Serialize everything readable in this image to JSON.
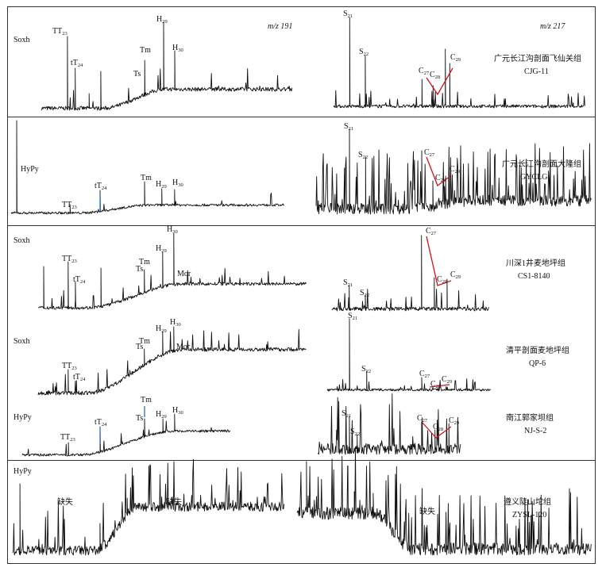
{
  "figure": {
    "left_ion": "m/z 191",
    "right_ion": "m/z 217",
    "missing_label": "缺失",
    "panels": [
      {
        "id": "cjg",
        "fraction_label": "Soxh",
        "sample_title": "广元长江沟剖面飞仙关组",
        "sample_id": "CJG-11",
        "left_peaks": [
          "TT23",
          "tT24",
          "Ts",
          "Tm",
          "H29",
          "H30"
        ],
        "right_peaks": [
          "S21",
          "S22",
          "C27",
          "C28",
          "C29"
        ]
      },
      {
        "id": "gyclg",
        "fraction_label": "HyPy",
        "sample_title": "广元长江沟剖面大隆组",
        "sample_id": "GYCLG",
        "left_peaks": [
          "TT23",
          "tT24",
          "Tm",
          "H29",
          "H30"
        ],
        "right_peaks": [
          "S21",
          "S22",
          "C27",
          "C28",
          "C29"
        ]
      },
      {
        "id": "cs1",
        "fraction_label": "Soxh",
        "sample_title": "川深1井麦地坪组",
        "sample_id": "CS1-8140",
        "left_peaks": [
          "TT23",
          "tT24",
          "Ts",
          "Tm",
          "H29",
          "H30",
          "Mor"
        ],
        "right_peaks": [
          "S21",
          "S22",
          "C27",
          "C28",
          "C29"
        ]
      },
      {
        "id": "qp6",
        "fraction_label": "Soxh",
        "sample_title": "清平剖面麦地坪组",
        "sample_id": "QP-6",
        "left_peaks": [
          "TT23",
          "tT24",
          "Ts",
          "Tm",
          "H29",
          "H30",
          "Mor"
        ],
        "right_peaks": [
          "S21",
          "S22",
          "C27",
          "C28",
          "C29"
        ]
      },
      {
        "id": "nj",
        "fraction_label": "HyPy",
        "sample_title": "南江郭家坝组",
        "sample_id": "NJ-S-2",
        "left_peaks": [
          "TT23",
          "tT24",
          "Ts",
          "Tm",
          "H29",
          "H30"
        ],
        "right_peaks": [
          "S21",
          "S22",
          "C27",
          "C28",
          "C29"
        ]
      },
      {
        "id": "zysl",
        "fraction_label": "HyPy",
        "sample_title": "遵义陡山坨组",
        "sample_id": "ZYSL-120"
      }
    ]
  }
}
